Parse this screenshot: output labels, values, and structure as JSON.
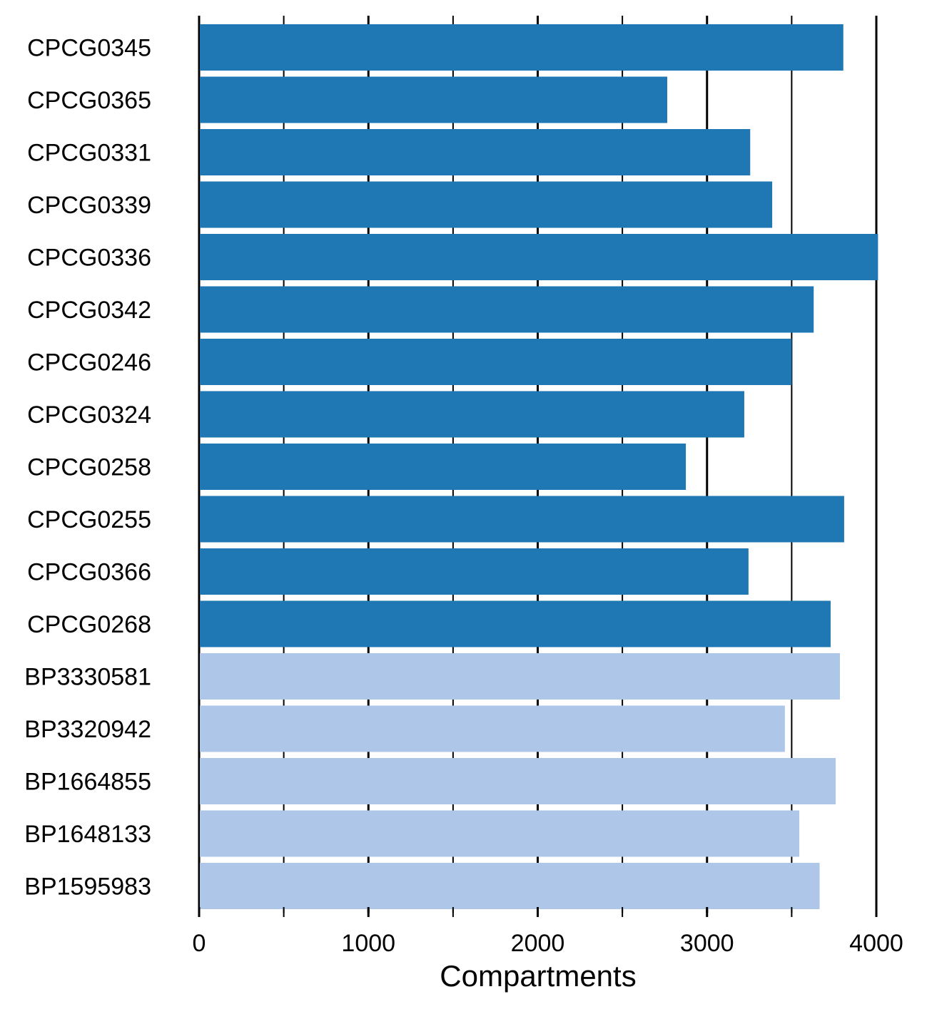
{
  "chart_data": {
    "type": "bar",
    "orientation": "horizontal",
    "title": "",
    "xlabel": "Compartments",
    "ylabel": "",
    "xlim": [
      0,
      4000
    ],
    "xticks": [
      0,
      1000,
      2000,
      3000,
      4000
    ],
    "xtick_labels": [
      "0",
      "1000",
      "2000",
      "3000",
      "4000"
    ],
    "minor_xticks": [
      500,
      1500,
      2500,
      3500
    ],
    "grid": true,
    "categories": [
      "CPCG0345",
      "CPCG0365",
      "CPCG0331",
      "CPCG0339",
      "CPCG0336",
      "CPCG0342",
      "CPCG0246",
      "CPCG0324",
      "CPCG0258",
      "CPCG0255",
      "CPCG0366",
      "CPCG0268",
      "BP3330581",
      "BP3320942",
      "BP1664855",
      "BP1648133",
      "BP1595983"
    ],
    "values": [
      3805,
      2765,
      3255,
      3385,
      4010,
      3630,
      3500,
      3220,
      2875,
      3810,
      3245,
      3730,
      3785,
      3460,
      3760,
      3545,
      3665
    ],
    "groups": [
      "CPCG",
      "CPCG",
      "CPCG",
      "CPCG",
      "CPCG",
      "CPCG",
      "CPCG",
      "CPCG",
      "CPCG",
      "CPCG",
      "CPCG",
      "CPCG",
      "BP",
      "BP",
      "BP",
      "BP",
      "BP"
    ],
    "colors": {
      "CPCG": "#1f77b4",
      "BP": "#aec7e8",
      "gridline": "#000000",
      "axis": "#000000"
    }
  }
}
